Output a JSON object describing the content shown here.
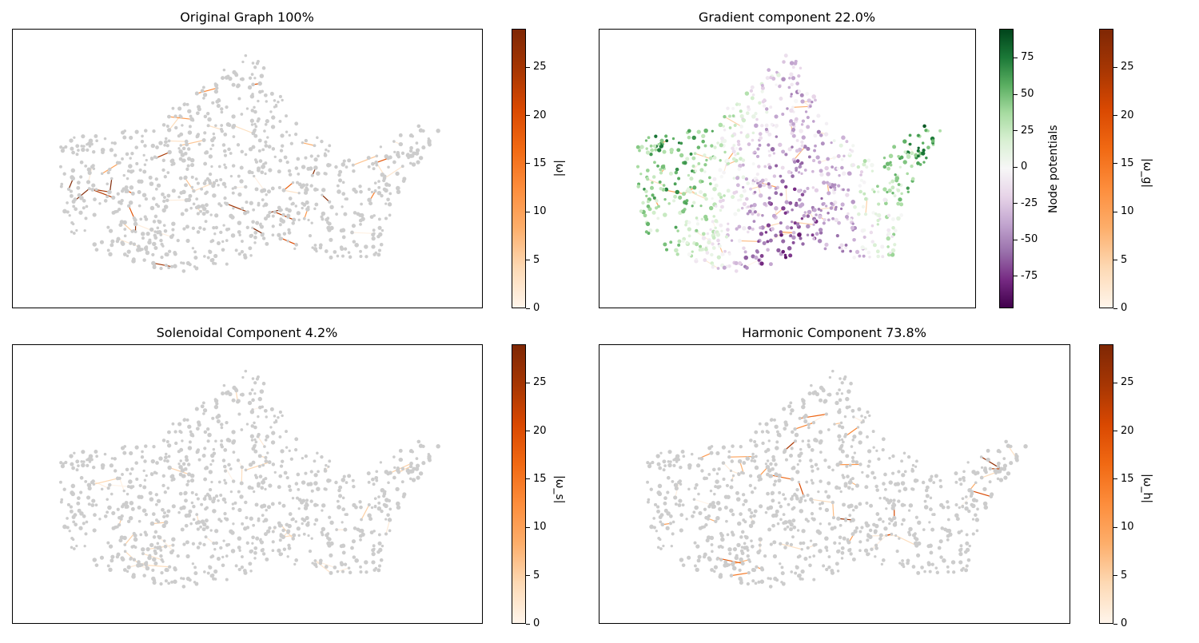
{
  "colors": {
    "oranges": [
      "#fff5eb",
      "#fdd9b4",
      "#fdae6b",
      "#fd8d3c",
      "#f16913",
      "#d94801",
      "#a63603",
      "#7f2704"
    ],
    "prgn": [
      "#40004b",
      "#762a83",
      "#9970ab",
      "#c2a5cf",
      "#e7d4e8",
      "#f7f7f7",
      "#d9f0d3",
      "#a6dba0",
      "#5aae61",
      "#1b7837",
      "#00441b"
    ],
    "node_gray": "#cccccc"
  },
  "chart_data": [
    {
      "type": "network",
      "title": "Original Graph 100%",
      "edge_intensity": 1.0,
      "node_color": "gray",
      "colorbar": {
        "label": "|ω|",
        "range": [
          0,
          29
        ],
        "ticks": [
          0,
          5,
          10,
          15,
          20,
          25
        ],
        "cmap": "Oranges"
      }
    },
    {
      "type": "network",
      "title": "Gradient component 22.0%",
      "edge_intensity": 0.22,
      "node_color": "potential",
      "colorbars": [
        {
          "label": "Node potentials",
          "range": [
            -97,
            95
          ],
          "ticks": [
            75,
            50,
            25,
            0,
            -25,
            -50,
            -75
          ],
          "cmap": "PRGn"
        },
        {
          "label": "|ω_g|",
          "range": [
            0,
            29
          ],
          "ticks": [
            0,
            5,
            10,
            15,
            20,
            25
          ],
          "cmap": "Oranges"
        }
      ]
    },
    {
      "type": "network",
      "title": "Solenoidal Component 4.2%",
      "edge_intensity": 0.042,
      "node_color": "gray",
      "colorbar": {
        "label": "|ω_s|",
        "range": [
          0,
          29
        ],
        "ticks": [
          0,
          5,
          10,
          15,
          20,
          25
        ],
        "cmap": "Oranges"
      }
    },
    {
      "type": "network",
      "title": "Harmonic Component 73.8%",
      "edge_intensity": 0.738,
      "node_color": "gray",
      "colorbar": {
        "label": "|ω_h|",
        "range": [
          0,
          29
        ],
        "ticks": [
          0,
          5,
          10,
          15,
          20,
          25
        ],
        "cmap": "Oranges"
      }
    }
  ]
}
